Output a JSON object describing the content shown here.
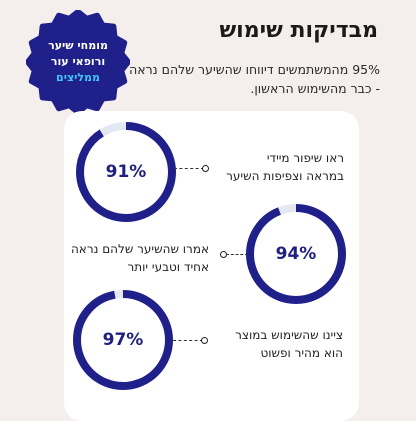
{
  "header": {
    "title": "מבדיקות שימוש",
    "subtitle": "95% מהמשתמשים דיווחו שהשיער שלהם נראה יותר מלא וטבעי - כבר מהשימוש הראשון."
  },
  "badge": {
    "line1": "מומחי שיער",
    "line2": "ורופאי עור",
    "line3": "ממליצים",
    "fill_color": "#20208a",
    "highlight_color": "#3fc6f6"
  },
  "stats": [
    {
      "value": "91%",
      "percent": 91,
      "text": "ראו שיפור מיידי במראה וצפיפות השיער"
    },
    {
      "value": "94%",
      "percent": 94,
      "text": "אמרו שהשיער שלהם נראה אחיד וטבעי יותר"
    },
    {
      "value": "97%",
      "percent": 97,
      "text": "ציינו שהשימוש במוצר הוא מהיר ופשוט"
    }
  ],
  "colors": {
    "ring": "#20208a",
    "ring_track": "#e3e8f2",
    "background": "#f4efed",
    "card": "#ffffff"
  }
}
